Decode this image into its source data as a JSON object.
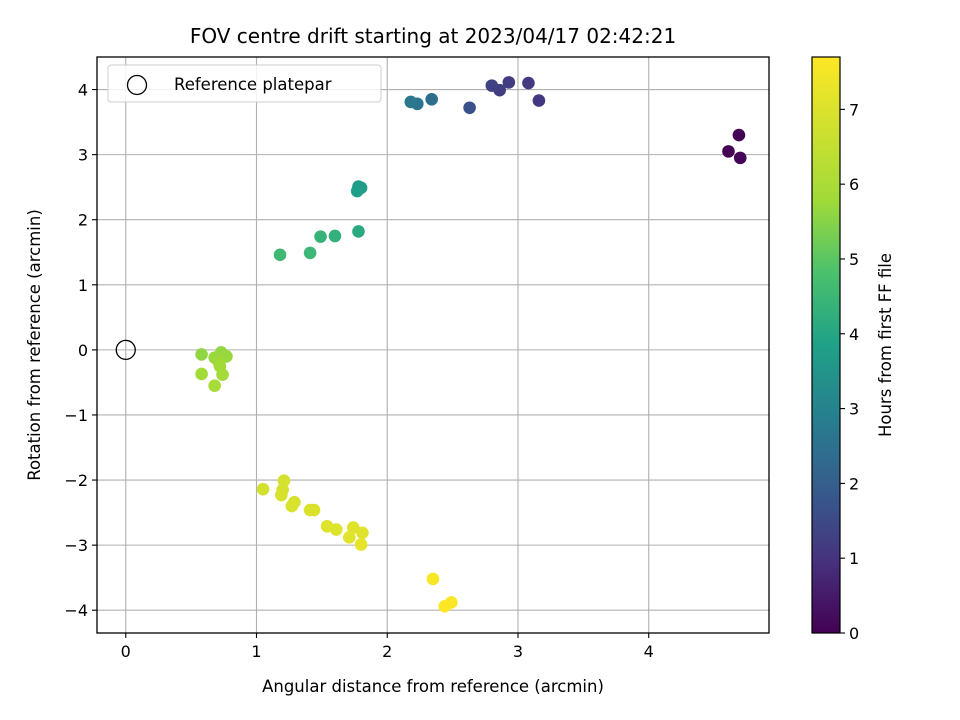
{
  "chart_data": {
    "type": "scatter",
    "title": "FOV centre drift starting at 2023/04/17 02:42:21",
    "xlabel": "Angular distance from reference (arcmin)",
    "ylabel": "Rotation from reference (arcmin)",
    "xlim": [
      -0.22,
      4.92
    ],
    "ylim": [
      -4.35,
      4.5
    ],
    "xticks": [
      0,
      1,
      2,
      3,
      4
    ],
    "yticks": [
      -4,
      -3,
      -2,
      -1,
      0,
      1,
      2,
      3,
      4
    ],
    "grid": true,
    "legend": {
      "placement": "top-left",
      "entries": [
        "Reference platepar"
      ]
    },
    "reference_point": {
      "x": 0,
      "y": 0
    },
    "colorbar": {
      "label": "Hours from first FF file",
      "colormap": "viridis",
      "range": [
        0,
        7.7
      ],
      "ticks": [
        0,
        1,
        2,
        3,
        4,
        5,
        6,
        7
      ]
    },
    "series": [
      {
        "points": [
          {
            "x": 4.61,
            "y": 3.05,
            "c": 0.0
          },
          {
            "x": 4.69,
            "y": 3.3,
            "c": 0.05
          },
          {
            "x": 4.7,
            "y": 2.95,
            "c": 0.1
          },
          {
            "x": 3.16,
            "y": 3.83,
            "c": 1.1
          },
          {
            "x": 3.08,
            "y": 4.1,
            "c": 1.15
          },
          {
            "x": 2.93,
            "y": 4.11,
            "c": 1.2
          },
          {
            "x": 2.86,
            "y": 3.99,
            "c": 1.25
          },
          {
            "x": 2.8,
            "y": 4.06,
            "c": 1.3
          },
          {
            "x": 2.63,
            "y": 3.72,
            "c": 1.7
          },
          {
            "x": 2.34,
            "y": 3.85,
            "c": 2.4
          },
          {
            "x": 2.23,
            "y": 3.78,
            "c": 2.6
          },
          {
            "x": 2.18,
            "y": 3.81,
            "c": 2.7
          },
          {
            "x": 1.78,
            "y": 2.51,
            "c": 3.7
          },
          {
            "x": 1.8,
            "y": 2.49,
            "c": 3.75
          },
          {
            "x": 1.77,
            "y": 2.44,
            "c": 3.8
          },
          {
            "x": 1.78,
            "y": 1.82,
            "c": 4.1
          },
          {
            "x": 1.6,
            "y": 1.75,
            "c": 4.3
          },
          {
            "x": 1.49,
            "y": 1.74,
            "c": 4.4
          },
          {
            "x": 1.41,
            "y": 1.49,
            "c": 4.5
          },
          {
            "x": 1.18,
            "y": 1.46,
            "c": 4.55
          },
          {
            "x": 0.58,
            "y": -0.07,
            "c": 5.6
          },
          {
            "x": 0.73,
            "y": -0.04,
            "c": 5.65
          },
          {
            "x": 0.68,
            "y": -0.12,
            "c": 5.7
          },
          {
            "x": 0.77,
            "y": -0.1,
            "c": 5.7
          },
          {
            "x": 0.71,
            "y": -0.18,
            "c": 5.75
          },
          {
            "x": 0.72,
            "y": -0.25,
            "c": 5.8
          },
          {
            "x": 0.58,
            "y": -0.37,
            "c": 5.8
          },
          {
            "x": 0.74,
            "y": -0.38,
            "c": 5.85
          },
          {
            "x": 0.68,
            "y": -0.55,
            "c": 5.9
          },
          {
            "x": 1.05,
            "y": -2.14,
            "c": 6.8
          },
          {
            "x": 1.21,
            "y": -2.01,
            "c": 6.85
          },
          {
            "x": 1.2,
            "y": -2.15,
            "c": 6.85
          },
          {
            "x": 1.19,
            "y": -2.23,
            "c": 6.9
          },
          {
            "x": 1.29,
            "y": -2.34,
            "c": 6.9
          },
          {
            "x": 1.27,
            "y": -2.4,
            "c": 6.95
          },
          {
            "x": 1.41,
            "y": -2.46,
            "c": 7.0
          },
          {
            "x": 1.44,
            "y": -2.46,
            "c": 7.0
          },
          {
            "x": 1.54,
            "y": -2.71,
            "c": 7.05
          },
          {
            "x": 1.61,
            "y": -2.76,
            "c": 7.05
          },
          {
            "x": 1.74,
            "y": -2.73,
            "c": 7.1
          },
          {
            "x": 1.81,
            "y": -2.81,
            "c": 7.1
          },
          {
            "x": 1.71,
            "y": -2.88,
            "c": 7.15
          },
          {
            "x": 1.8,
            "y": -2.99,
            "c": 7.2
          },
          {
            "x": 2.35,
            "y": -3.52,
            "c": 7.6
          },
          {
            "x": 2.49,
            "y": -3.88,
            "c": 7.65
          },
          {
            "x": 2.44,
            "y": -3.94,
            "c": 7.7
          }
        ]
      }
    ]
  }
}
